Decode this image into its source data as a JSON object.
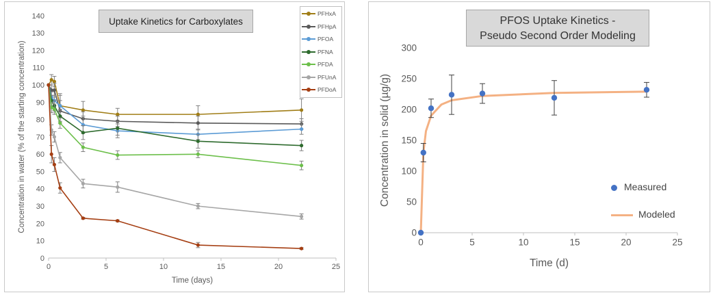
{
  "chart_data": [
    {
      "type": "line",
      "title": "Uptake Kinetics for Carboxylates",
      "xlabel": "Time (days)",
      "ylabel": "Concentration in water (% of the starting concentration)",
      "xlim": [
        0,
        25
      ],
      "ylim": [
        0,
        140
      ],
      "xticks": [
        0,
        5,
        10,
        15,
        20,
        25
      ],
      "yticks": [
        0,
        10,
        20,
        30,
        40,
        50,
        60,
        70,
        80,
        90,
        100,
        110,
        120,
        130,
        140
      ],
      "grid": false,
      "legend_position": "top-right",
      "series": [
        {
          "name": "PFHxA",
          "color": "#a07d16",
          "x": [
            0,
            0.25,
            0.5,
            1,
            3,
            6,
            13,
            22
          ],
          "y": [
            100,
            103,
            102,
            88,
            85.5,
            83,
            83,
            85.5
          ],
          "err": [
            0,
            3,
            3,
            7,
            5,
            3.5,
            5,
            6.5
          ]
        },
        {
          "name": "PFHpA",
          "color": "#595959",
          "x": [
            0,
            0.25,
            0.5,
            1,
            3,
            6,
            13,
            22
          ],
          "y": [
            100,
            97,
            97,
            85,
            80.5,
            79,
            78,
            77.5
          ],
          "err": [
            0,
            3,
            4,
            6,
            4,
            3,
            4,
            3
          ]
        },
        {
          "name": "PFOA",
          "color": "#5b9bd5",
          "x": [
            0,
            0.25,
            0.5,
            1,
            3,
            6,
            13,
            22
          ],
          "y": [
            100,
            93,
            91,
            88,
            77,
            73.5,
            71.5,
            74.5
          ],
          "err": [
            0,
            3,
            3,
            6,
            5,
            4,
            3,
            3
          ]
        },
        {
          "name": "PFNA",
          "color": "#2e6b2e",
          "x": [
            0,
            0.25,
            0.5,
            1,
            3,
            6,
            13,
            22
          ],
          "y": [
            100,
            91,
            88,
            82,
            72.5,
            75,
            67.5,
            65
          ],
          "err": [
            0,
            3,
            3,
            4,
            4,
            4,
            4,
            3
          ]
        },
        {
          "name": "PFDA",
          "color": "#6cbf4a",
          "x": [
            0,
            0.25,
            0.5,
            1,
            3,
            6,
            13,
            22
          ],
          "y": [
            100,
            87,
            86,
            78,
            64,
            59.5,
            60,
            53.5
          ],
          "err": [
            0,
            3,
            3,
            3,
            2.5,
            2.5,
            2,
            2.5
          ]
        },
        {
          "name": "PFUnA",
          "color": "#a6a6a6",
          "x": [
            0,
            0.25,
            0.5,
            1,
            3,
            6,
            13,
            22
          ],
          "y": [
            100,
            74,
            70,
            58,
            43,
            41,
            30,
            24
          ],
          "err": [
            0,
            3,
            3,
            3,
            2.5,
            3,
            1.5,
            1.5
          ]
        },
        {
          "name": "PFDoA",
          "color": "#a53e12",
          "x": [
            0,
            0.25,
            0.5,
            1,
            3,
            6,
            13,
            22
          ],
          "y": [
            100,
            60,
            54,
            40.5,
            23,
            21.5,
            7.5,
            5.5
          ],
          "err": [
            0,
            5,
            4,
            3,
            0.5,
            0.5,
            1.5,
            0.5
          ]
        }
      ]
    },
    {
      "type": "scatter",
      "title_lines": [
        "PFOS Uptake Kinetics -",
        "Pseudo Second Order Modeling"
      ],
      "xlabel": "Time (d)",
      "ylabel": "Concentration in solid (µg/g)",
      "xlim": [
        0,
        25
      ],
      "ylim": [
        0,
        300
      ],
      "xticks": [
        0,
        5,
        10,
        15,
        20,
        25
      ],
      "yticks": [
        0,
        50,
        100,
        150,
        200,
        250,
        300
      ],
      "grid": false,
      "legend_position": "bottom-right",
      "series": [
        {
          "name": "Measured",
          "kind": "scatter",
          "color": "#4472c4",
          "x": [
            0,
            0.25,
            1,
            3,
            6,
            13,
            22
          ],
          "y": [
            0,
            130,
            202,
            224,
            226,
            219,
            232
          ],
          "err": [
            0,
            15,
            15,
            32,
            16,
            28,
            12
          ]
        },
        {
          "name": "Modeled",
          "kind": "line",
          "color": "#f4b183",
          "x": [
            0,
            0.25,
            0.5,
            1,
            2,
            3,
            6,
            13,
            22
          ],
          "y": [
            0,
            130,
            165,
            190,
            208,
            215,
            222,
            227,
            229
          ]
        }
      ]
    }
  ]
}
